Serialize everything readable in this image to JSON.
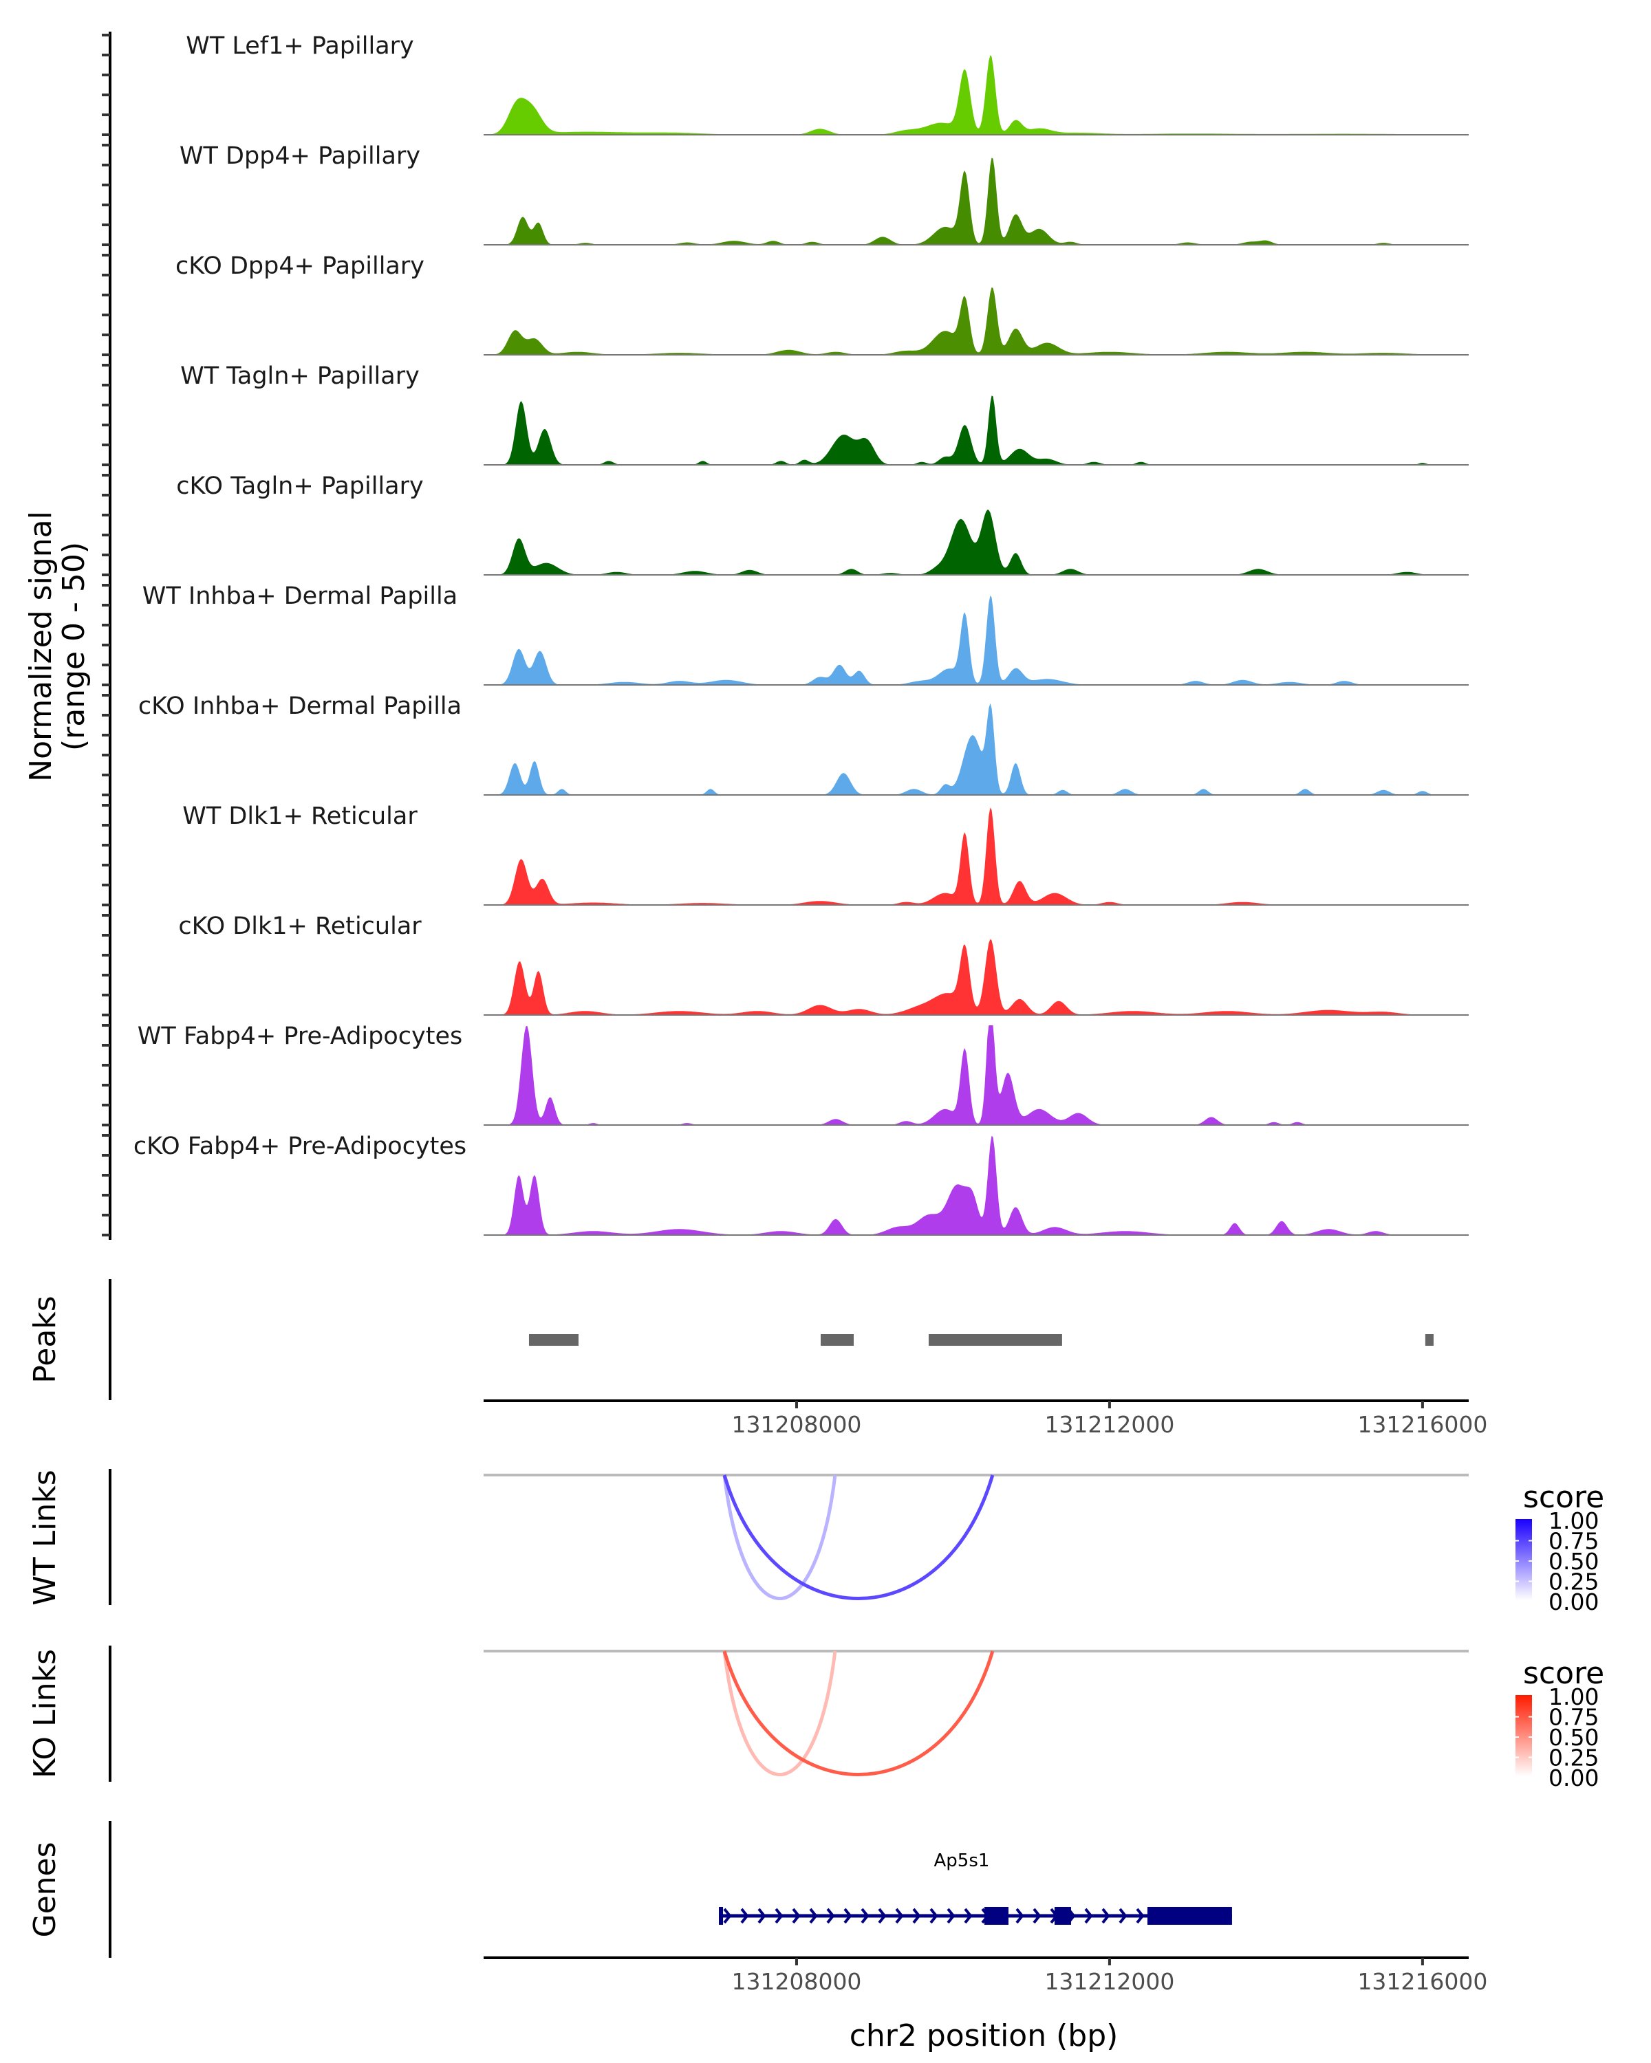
{
  "chart_data": {
    "type": "area",
    "title": "",
    "region": {
      "chrom": "chr2",
      "start": 131204000,
      "end": 131216590
    },
    "xlabel": "chr2 position (bp)",
    "x_ticks": [
      131208000,
      131212000,
      131216000
    ],
    "x_tick_labels": [
      "131208000",
      "131212000",
      "131216000"
    ],
    "coverage": {
      "ylabel_line1": "Normalized signal",
      "ylabel_line2": "(range 0 - 50)",
      "ylim": [
        0,
        50
      ],
      "tracks": [
        {
          "name": "WT Lef1+ Papillary",
          "color": "#66CC00",
          "peaks": [
            [
              131204420,
              14,
              110
            ],
            [
              131204620,
              12,
              120
            ],
            [
              131205300,
              1.5,
              500
            ],
            [
              131206400,
              1,
              400
            ],
            [
              131208300,
              3,
              120
            ],
            [
              131209400,
              2,
              150
            ],
            [
              131209850,
              6,
              200
            ],
            [
              131210150,
              31,
              70
            ],
            [
              131210480,
              40,
              60
            ],
            [
              131210800,
              7,
              80
            ],
            [
              131211100,
              3,
              150
            ],
            [
              131211600,
              1,
              300
            ],
            [
              131213000,
              0.6,
              600
            ],
            [
              131215000,
              0.5,
              800
            ]
          ]
        },
        {
          "name": "WT Dpp4+ Papillary",
          "color": "#468C00",
          "peaks": [
            [
              131204500,
              14,
              70
            ],
            [
              131204700,
              11,
              60
            ],
            [
              131205300,
              1,
              80
            ],
            [
              131206600,
              1.2,
              100
            ],
            [
              131207200,
              2,
              150
            ],
            [
              131207700,
              2,
              80
            ],
            [
              131208200,
              1.5,
              80
            ],
            [
              131209100,
              4,
              100
            ],
            [
              131209900,
              9,
              150
            ],
            [
              131210150,
              35,
              60
            ],
            [
              131210500,
              44,
              55
            ],
            [
              131210800,
              15,
              80
            ],
            [
              131211100,
              8,
              120
            ],
            [
              131211500,
              1.5,
              80
            ],
            [
              131213000,
              1.2,
              100
            ],
            [
              131213800,
              1.5,
              100
            ],
            [
              131214000,
              2,
              80
            ],
            [
              131215500,
              1,
              80
            ]
          ]
        },
        {
          "name": "cKO Dpp4+ Papillary",
          "color": "#4C8F00",
          "peaks": [
            [
              131204400,
              12,
              90
            ],
            [
              131204650,
              8,
              100
            ],
            [
              131205200,
              1.5,
              200
            ],
            [
              131206500,
              1,
              300
            ],
            [
              131207900,
              2.5,
              150
            ],
            [
              131208500,
              1.5,
              120
            ],
            [
              131209400,
              2,
              150
            ],
            [
              131209900,
              12,
              160
            ],
            [
              131210150,
              26,
              60
            ],
            [
              131210500,
              34,
              60
            ],
            [
              131210800,
              13,
              90
            ],
            [
              131211200,
              6,
              150
            ],
            [
              131212000,
              1.5,
              300
            ],
            [
              131213500,
              1.5,
              300
            ],
            [
              131214500,
              1.5,
              300
            ],
            [
              131215500,
              1,
              300
            ]
          ]
        },
        {
          "name": "WT Tagln+ Papillary",
          "color": "#006400",
          "peaks": [
            [
              131204480,
              32,
              70
            ],
            [
              131204780,
              18,
              80
            ],
            [
              131205600,
              2,
              60
            ],
            [
              131206800,
              2,
              50
            ],
            [
              131207800,
              2,
              60
            ],
            [
              131208100,
              2.5,
              60
            ],
            [
              131208600,
              15,
              150
            ],
            [
              131208900,
              11,
              100
            ],
            [
              131209600,
              1.5,
              60
            ],
            [
              131209900,
              4,
              80
            ],
            [
              131210150,
              20,
              80
            ],
            [
              131210500,
              35,
              50
            ],
            [
              131210850,
              8,
              120
            ],
            [
              131211200,
              3,
              120
            ],
            [
              131211800,
              1.5,
              80
            ],
            [
              131212400,
              1.5,
              60
            ],
            [
              131216000,
              1,
              50
            ]
          ]
        },
        {
          "name": "cKO Tagln+ Papillary",
          "color": "#006400",
          "peaks": [
            [
              131204450,
              18,
              80
            ],
            [
              131204800,
              6,
              150
            ],
            [
              131205700,
              1.5,
              120
            ],
            [
              131206700,
              2,
              150
            ],
            [
              131207400,
              2.5,
              100
            ],
            [
              131208700,
              3,
              80
            ],
            [
              131209200,
              1,
              100
            ],
            [
              131209800,
              3,
              100
            ],
            [
              131210100,
              28,
              130
            ],
            [
              131210450,
              32,
              90
            ],
            [
              131210800,
              11,
              70
            ],
            [
              131211500,
              3,
              100
            ],
            [
              131213900,
              3,
              120
            ],
            [
              131215800,
              1.5,
              120
            ]
          ]
        },
        {
          "name": "WT Inhba+ Dermal Papilla",
          "color": "#5DA9E9",
          "peaks": [
            [
              131204450,
              18,
              80
            ],
            [
              131204720,
              17,
              80
            ],
            [
              131205800,
              1.5,
              200
            ],
            [
              131206500,
              2,
              150
            ],
            [
              131207100,
              2.5,
              200
            ],
            [
              131208300,
              4,
              90
            ],
            [
              131208550,
              10,
              80
            ],
            [
              131208800,
              7,
              70
            ],
            [
              131209600,
              2,
              150
            ],
            [
              131209950,
              8,
              130
            ],
            [
              131210150,
              34,
              55
            ],
            [
              131210480,
              45,
              55
            ],
            [
              131210800,
              8,
              90
            ],
            [
              131211200,
              3,
              200
            ],
            [
              131213100,
              2,
              100
            ],
            [
              131213700,
              2.5,
              120
            ],
            [
              131214300,
              1.5,
              150
            ],
            [
              131215000,
              2,
              100
            ]
          ]
        },
        {
          "name": "cKO Inhba+ Dermal Papilla",
          "color": "#5DA9E9",
          "peaks": [
            [
              131204400,
              16,
              70
            ],
            [
              131204650,
              17,
              60
            ],
            [
              131205000,
              3,
              50
            ],
            [
              131206900,
              3,
              50
            ],
            [
              131208600,
              11,
              90
            ],
            [
              131209500,
              3,
              100
            ],
            [
              131209900,
              5,
              60
            ],
            [
              131210250,
              30,
              120
            ],
            [
              131210480,
              41,
              50
            ],
            [
              131210800,
              16,
              60
            ],
            [
              131211400,
              2.5,
              60
            ],
            [
              131212200,
              3,
              80
            ],
            [
              131213200,
              3,
              60
            ],
            [
              131214500,
              3,
              60
            ],
            [
              131215500,
              2.5,
              80
            ],
            [
              131216000,
              2,
              60
            ]
          ]
        },
        {
          "name": "WT Dlk1+ Reticular",
          "color": "#FF3333",
          "peaks": [
            [
              131204480,
              23,
              80
            ],
            [
              131204750,
              13,
              80
            ],
            [
              131205400,
              1.2,
              300
            ],
            [
              131206800,
              1,
              300
            ],
            [
              131208300,
              2,
              200
            ],
            [
              131209400,
              1.5,
              100
            ],
            [
              131209900,
              6,
              150
            ],
            [
              131210150,
              35,
              55
            ],
            [
              131210480,
              49,
              55
            ],
            [
              131210850,
              12,
              80
            ],
            [
              131211300,
              6,
              150
            ],
            [
              131212000,
              1.5,
              100
            ],
            [
              131213700,
              1.5,
              200
            ]
          ]
        },
        {
          "name": "cKO Dlk1+ Reticular",
          "color": "#FF3333",
          "peaks": [
            [
              131204460,
              27,
              70
            ],
            [
              131204700,
              22,
              60
            ],
            [
              131205300,
              2,
              200
            ],
            [
              131206500,
              2,
              300
            ],
            [
              131207500,
              2,
              200
            ],
            [
              131208300,
              5,
              150
            ],
            [
              131208800,
              3,
              150
            ],
            [
              131209600,
              4,
              200
            ],
            [
              131209950,
              10,
              180
            ],
            [
              131210150,
              30,
              60
            ],
            [
              131210480,
              38,
              70
            ],
            [
              131210850,
              8,
              100
            ],
            [
              131211350,
              7,
              100
            ],
            [
              131212300,
              2,
              300
            ],
            [
              131213500,
              2,
              300
            ],
            [
              131214800,
              2.5,
              300
            ],
            [
              131215500,
              1.5,
              200
            ]
          ]
        },
        {
          "name": "WT Fabp4+ Pre-Adipocytes",
          "color": "#B03DEB",
          "peaks": [
            [
              131204550,
              50,
              70
            ],
            [
              131204850,
              14,
              60
            ],
            [
              131205400,
              1,
              50
            ],
            [
              131206600,
              1,
              60
            ],
            [
              131208500,
              3,
              90
            ],
            [
              131209400,
              2,
              80
            ],
            [
              131209900,
              8,
              140
            ],
            [
              131210150,
              37,
              55
            ],
            [
              131210480,
              62,
              50
            ],
            [
              131210700,
              26,
              80
            ],
            [
              131211100,
              8,
              150
            ],
            [
              131211600,
              6,
              120
            ],
            [
              131213300,
              4,
              80
            ],
            [
              131214100,
              1.5,
              60
            ],
            [
              131214400,
              1.5,
              60
            ]
          ]
        },
        {
          "name": "cKO Fabp4+ Pre-Adipocytes",
          "color": "#B03DEB",
          "peaks": [
            [
              131204450,
              30,
              60
            ],
            [
              131204650,
              30,
              60
            ],
            [
              131205400,
              2,
              250
            ],
            [
              131206500,
              3,
              300
            ],
            [
              131207800,
              2,
              200
            ],
            [
              131208500,
              8,
              80
            ],
            [
              131209300,
              4,
              150
            ],
            [
              131209700,
              10,
              150
            ],
            [
              131210050,
              24,
              120
            ],
            [
              131210250,
              16,
              80
            ],
            [
              131210500,
              50,
              55
            ],
            [
              131210800,
              14,
              80
            ],
            [
              131211300,
              4,
              150
            ],
            [
              131212200,
              2,
              300
            ],
            [
              131213600,
              6,
              60
            ],
            [
              131214200,
              7,
              70
            ],
            [
              131214800,
              3,
              150
            ],
            [
              131215400,
              2,
              100
            ]
          ]
        }
      ]
    },
    "peaks_track": {
      "label": "Peaks",
      "color": "#666666",
      "ranges": [
        [
          131204580,
          131205213
        ],
        [
          131208308,
          131208730
        ],
        [
          131209688,
          131211393
        ],
        [
          131216035,
          131216141
        ]
      ]
    },
    "link_tracks": [
      {
        "label": "WT Links",
        "legend_title": "score",
        "low_color": "#FFFFFF",
        "high_color": "#1A00FF",
        "links": [
          {
            "start": 131207077,
            "end": 131208492,
            "score": 0.2
          },
          {
            "start": 131207077,
            "end": 131210505,
            "score": 0.75
          }
        ]
      },
      {
        "label": "KO Links",
        "legend_title": "score",
        "low_color": "#FFFFFF",
        "high_color": "#FF1A00",
        "links": [
          {
            "start": 131207077,
            "end": 131208492,
            "score": 0.2
          },
          {
            "start": 131207077,
            "end": 131210505,
            "score": 0.75
          }
        ]
      }
    ],
    "legend_ticks": [
      "1.00",
      "0.75",
      "0.50",
      "0.25",
      "0.00"
    ],
    "genes_track": {
      "label": "Genes",
      "color": "#000080",
      "genes": [
        {
          "name": "Ap5s1",
          "strand": "+",
          "start": 131207007,
          "end": 131213565,
          "exons": [
            [
              131207007,
              131207060
            ],
            [
              131210400,
              131210708
            ],
            [
              131211297,
              131211508
            ],
            [
              131212484,
              131213565
            ]
          ]
        }
      ]
    }
  }
}
